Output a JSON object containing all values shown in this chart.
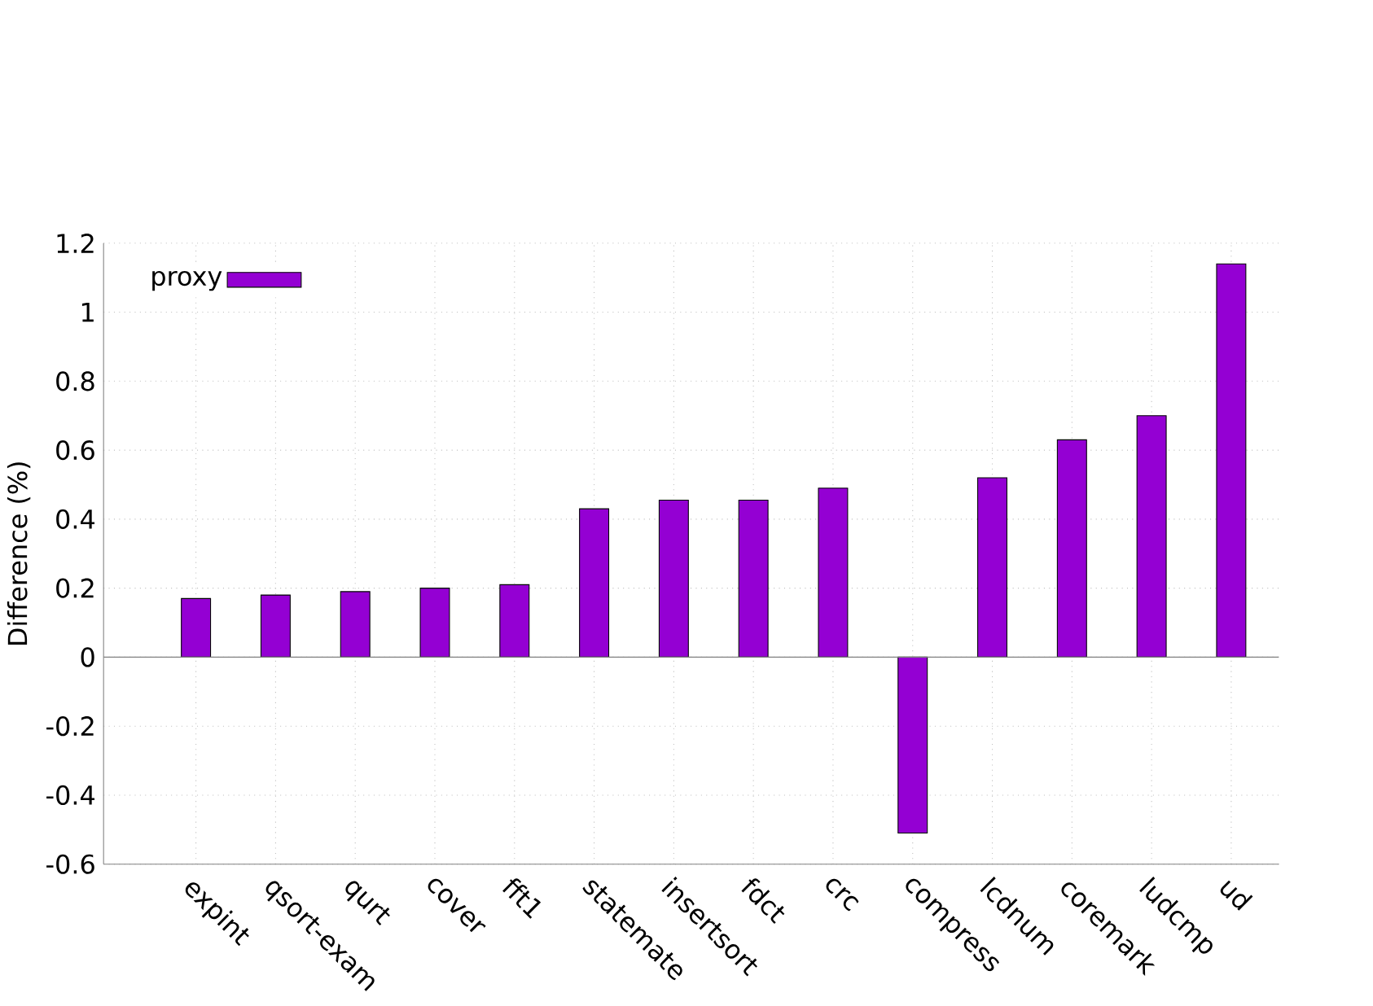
{
  "chart_data": {
    "type": "bar",
    "ylabel": "Difference (%)",
    "categories": [
      "expint",
      "qsort-exam",
      "qurt",
      "cover",
      "fft1",
      "statemate",
      "insertsort",
      "fdct",
      "crc",
      "compress",
      "lcdnum",
      "coremark",
      "ludcmp",
      "ud"
    ],
    "series": [
      {
        "name": "proxy",
        "color": "#9400d3",
        "values": [
          0.17,
          0.18,
          0.19,
          0.2,
          0.21,
          0.43,
          0.455,
          0.455,
          0.49,
          -0.51,
          0.52,
          0.63,
          0.7,
          1.14
        ]
      }
    ],
    "ylim": [
      -0.6,
      1.2
    ],
    "yticks": [
      -0.6,
      -0.4,
      -0.2,
      0,
      0.2,
      0.4,
      0.6,
      0.8,
      1,
      1.2
    ],
    "grid": true,
    "legend": "top left"
  }
}
